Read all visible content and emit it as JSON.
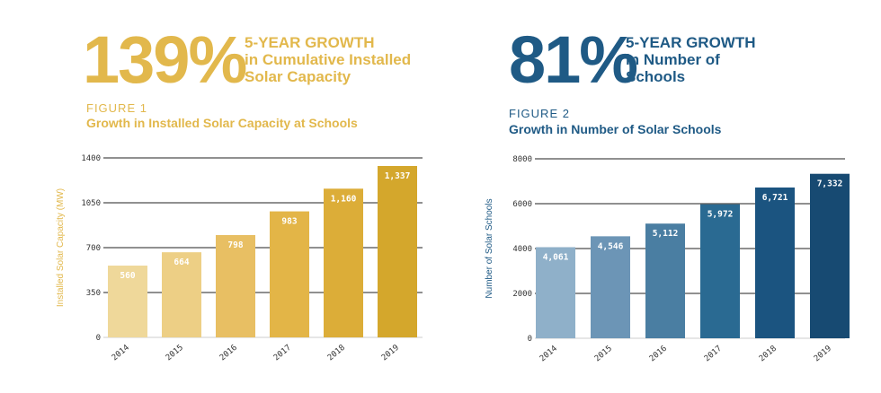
{
  "left": {
    "headline_pct": "139%",
    "headline_lines": [
      "5-YEAR GROWTH",
      "in Cumulative Installed",
      "Solar Capacity"
    ],
    "figure_label": "FIGURE 1",
    "figure_title": "Growth in Installed Solar Capacity at Schools",
    "accent_color": "#E2B84C"
  },
  "right": {
    "headline_pct": "81%",
    "headline_lines": [
      "5-YEAR GROWTH",
      "in Number of",
      "Schools"
    ],
    "figure_label": "FIGURE 2",
    "figure_title": "Growth in Number of Solar Schools",
    "accent_color": "#1F5A85"
  },
  "chart_data": [
    {
      "type": "bar",
      "title": "Growth in Installed Solar Capacity at Schools",
      "ylabel": "Installed Solar Capacity (MW)",
      "xlabel": "",
      "categories": [
        "2014",
        "2015",
        "2016",
        "2017",
        "2018",
        "2019"
      ],
      "values": [
        560,
        664,
        798,
        983,
        1160,
        1337
      ],
      "value_labels": [
        "560",
        "664",
        "798",
        "983",
        "1,160",
        "1,337"
      ],
      "ylim": [
        0,
        1400
      ],
      "yticks": [
        0,
        350,
        700,
        1050,
        1400
      ],
      "ytick_labels": [
        "0",
        "350",
        "700",
        "1050",
        "1400"
      ],
      "grid": true,
      "bar_colors": [
        "#EFD89A",
        "#EDCF85",
        "#E8BF63",
        "#E3B547",
        "#DCAD38",
        "#D4A72C"
      ]
    },
    {
      "type": "bar",
      "title": "Growth in Number of Solar Schools",
      "ylabel": "Number of Solar Schools",
      "xlabel": "",
      "categories": [
        "2014",
        "2015",
        "2016",
        "2017",
        "2018",
        "2019"
      ],
      "values": [
        4061,
        4546,
        5112,
        5972,
        6721,
        7332
      ],
      "value_labels": [
        "4,061",
        "4,546",
        "5,112",
        "5,972",
        "6,721",
        "7,332"
      ],
      "ylim": [
        0,
        8000
      ],
      "yticks": [
        0,
        2000,
        4000,
        6000,
        8000
      ],
      "ytick_labels": [
        "0",
        "2000",
        "4000",
        "6000",
        "8000"
      ],
      "grid": true,
      "bar_colors": [
        "#8FB0C9",
        "#6C95B6",
        "#4A7EA2",
        "#2A6A92",
        "#1B5480",
        "#174A72"
      ]
    }
  ]
}
